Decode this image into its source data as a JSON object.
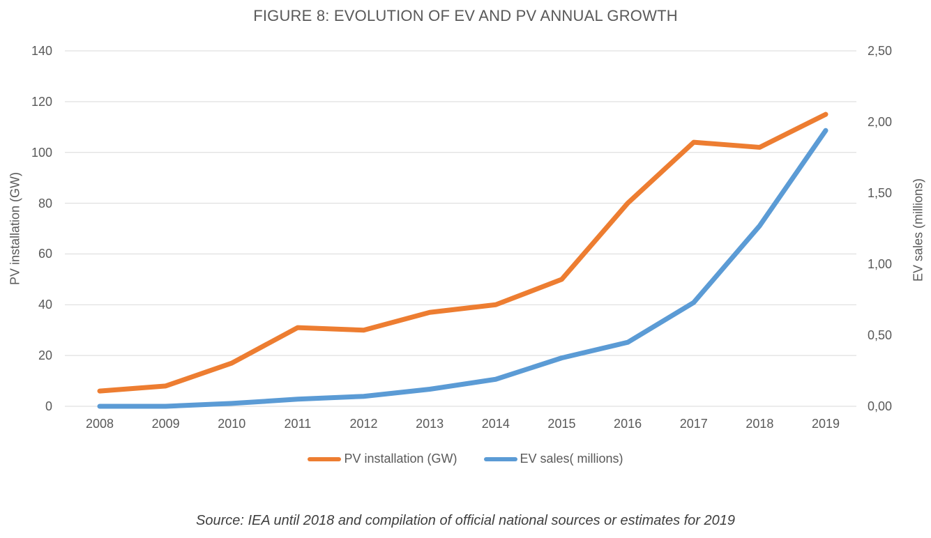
{
  "title": "FIGURE 8: EVOLUTION OF EV AND PV ANNUAL GROWTH",
  "source_note": "Source: IEA until 2018 and compilation of official national sources or estimates for 2019",
  "colors": {
    "pv_series": "#ED7D31",
    "ev_series": "#5B9BD5",
    "gridline": "#D9D9D9",
    "axis_text": "#595959",
    "title_text": "#595959",
    "source_text": "#3F3F3F"
  },
  "left_axis": {
    "label": "PV installation (GW)",
    "ticks": [
      "140",
      "120",
      "100",
      "80",
      "60",
      "40",
      "20",
      "0"
    ]
  },
  "right_axis": {
    "label": "EV sales (millions)",
    "ticks": [
      "2,50",
      "2,00",
      "1,50",
      "1,00",
      "0,50",
      "0,00"
    ]
  },
  "legend": [
    {
      "label": "PV installation (GW)",
      "color": "#ED7D31"
    },
    {
      "label": "EV sales( millions)",
      "color": "#5B9BD5"
    }
  ],
  "chart_data": {
    "type": "line",
    "title": "FIGURE 8: EVOLUTION OF EV AND PV ANNUAL GROWTH",
    "x": [
      "2008",
      "2009",
      "2010",
      "2011",
      "2012",
      "2013",
      "2014",
      "2015",
      "2016",
      "2017",
      "2018",
      "2019"
    ],
    "series": [
      {
        "name": "PV installation (GW)",
        "axis": "left",
        "color": "#ED7D31",
        "values": [
          6,
          8,
          17,
          31,
          30,
          37,
          40,
          50,
          80,
          104,
          102,
          115
        ]
      },
      {
        "name": "EV sales( millions)",
        "axis": "right",
        "color": "#5B9BD5",
        "values": [
          0.0,
          0.0,
          0.02,
          0.05,
          0.07,
          0.12,
          0.19,
          0.34,
          0.45,
          0.73,
          1.27,
          1.94
        ]
      }
    ],
    "left_ylabel": "PV installation (GW)",
    "right_ylabel": "EV sales (millions)",
    "left_ylim": [
      0,
      140
    ],
    "left_step": 20,
    "right_ylim": [
      0,
      2.5
    ],
    "right_step": 0.5,
    "grid": true,
    "legend_position": "bottom"
  }
}
